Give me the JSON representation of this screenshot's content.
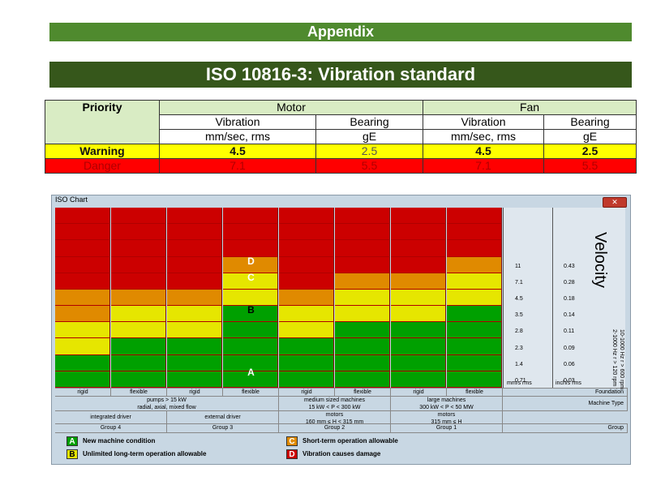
{
  "banners": {
    "appendix": "Appendix",
    "title": "ISO 10816-3: Vibration standard"
  },
  "priority_table": {
    "priority": "Priority",
    "motor": "Motor",
    "fan": "Fan",
    "vibration": "Vibration",
    "bearing": "Bearing",
    "vib_unit": "mm/sec, rms",
    "bear_unit": "gE",
    "rows": [
      {
        "label": "Warning",
        "motor_vib": "4.5",
        "motor_bear": "2.5",
        "fan_vib": "4.5",
        "fan_bear": "2.5"
      },
      {
        "label": "Danger",
        "motor_vib": "7.1",
        "motor_bear": "5.5",
        "fan_vib": "7.1",
        "fan_bear": "5.5"
      }
    ],
    "colors": {
      "header": "#d9ecc4",
      "warning": "#ffff00",
      "danger": "#ff0000"
    }
  },
  "iso_chart": {
    "window_title": "ISO Chart",
    "close_label": "✕",
    "zone_colors": {
      "A": "#00a000",
      "B": "#e6e600",
      "C": "#e08a00",
      "D": "#cc0000"
    },
    "zone_labels": {
      "A": "A",
      "B": "B",
      "C": "C",
      "D": "D"
    },
    "velocity_label": "Velocity",
    "freq_label_1": "10-1000 Hz r > 600 rpm",
    "freq_label_2": "2-1000 Hz r > 120 rpm",
    "mm_ticks": [
      "11",
      "7.1",
      "4.5",
      "3.5",
      "2.8",
      "2.3",
      "1.4",
      "0.71"
    ],
    "inch_ticks": [
      "0.43",
      "0.28",
      "0.18",
      "0.14",
      "0.11",
      "0.09",
      "0.06",
      "0.03"
    ],
    "mm_unit": "mm/s rms",
    "inch_unit": "inch/s rms",
    "foundations": [
      "rigid",
      "flexible",
      "rigid",
      "flexible",
      "rigid",
      "flexible",
      "rigid",
      "flexible"
    ],
    "foundation_label": "Foundation",
    "machine_types": [
      {
        "line1": "pumps > 15 kW",
        "line2": "radial, axial, mixed flow"
      },
      {
        "line1": "medium sized machines",
        "line2": "15 kW < P < 300 kW"
      },
      {
        "line1": "large machines",
        "line2": "300 kW < P < 50 MW"
      }
    ],
    "machine_type_label": "Machine Type",
    "drivers": [
      "integrated driver",
      "external driver"
    ],
    "motors": [
      {
        "line1": "motors",
        "line2": "160 mm ≤ H < 315 mm"
      },
      {
        "line1": "motors",
        "line2": "315 mm ≤ H"
      }
    ],
    "groups": [
      "Group 4",
      "Group 3",
      "Group 2",
      "Group 1"
    ],
    "group_label": "Group",
    "columns_zones": [
      [
        "D",
        "D",
        "D",
        "D",
        "D",
        "C",
        "C",
        "B",
        "B",
        "A",
        "A"
      ],
      [
        "D",
        "D",
        "D",
        "D",
        "D",
        "C",
        "B",
        "B",
        "A",
        "A",
        "A"
      ],
      [
        "D",
        "D",
        "D",
        "D",
        "D",
        "C",
        "B",
        "B",
        "A",
        "A",
        "A"
      ],
      [
        "D",
        "D",
        "D",
        "C",
        "B",
        "B",
        "A",
        "A",
        "A",
        "A",
        "A"
      ],
      [
        "D",
        "D",
        "D",
        "D",
        "D",
        "C",
        "B",
        "B",
        "A",
        "A",
        "A"
      ],
      [
        "D",
        "D",
        "D",
        "D",
        "C",
        "B",
        "B",
        "A",
        "A",
        "A",
        "A"
      ],
      [
        "D",
        "D",
        "D",
        "D",
        "C",
        "B",
        "B",
        "A",
        "A",
        "A",
        "A"
      ],
      [
        "D",
        "D",
        "D",
        "C",
        "B",
        "B",
        "A",
        "A",
        "A",
        "A",
        "A"
      ]
    ],
    "legend": [
      {
        "letter": "A",
        "text": "New machine condition"
      },
      {
        "letter": "B",
        "text": "Unlimited long-term operation allowable"
      },
      {
        "letter": "C",
        "text": "Short-term operation allowable"
      },
      {
        "letter": "D",
        "text": "Vibration causes damage"
      }
    ]
  }
}
